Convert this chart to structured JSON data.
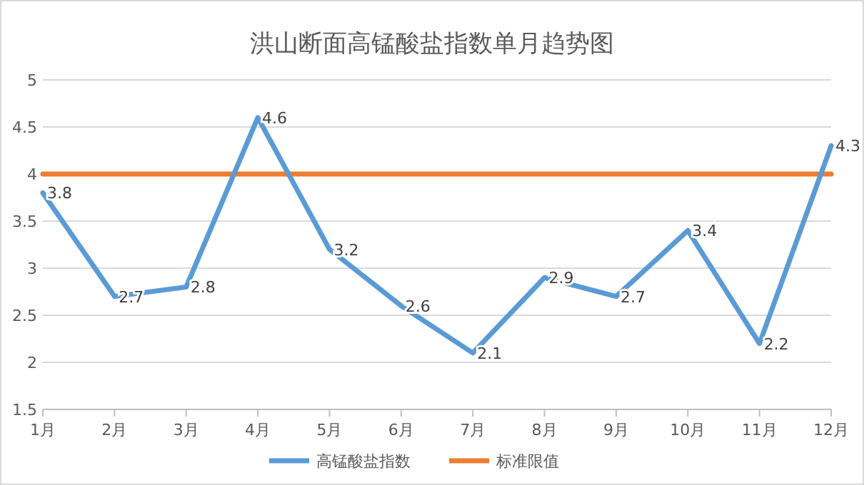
{
  "chart_data": {
    "type": "line",
    "title": "洪山断面高锰酸盐指数单月趋势图",
    "categories": [
      "1月",
      "2月",
      "3月",
      "4月",
      "5月",
      "6月",
      "7月",
      "8月",
      "9月",
      "10月",
      "11月",
      "12月"
    ],
    "series": [
      {
        "name": "高锰酸盐指数",
        "color": "#5b9bd5",
        "values": [
          3.8,
          2.7,
          2.8,
          4.6,
          3.2,
          2.6,
          2.1,
          2.9,
          2.7,
          3.4,
          2.2,
          4.3
        ],
        "value_labels": [
          "3.8",
          "2.7",
          "2.8",
          "4.6",
          "3.2",
          "2.6",
          "2.1",
          "2.9",
          "2.7",
          "3.4",
          "2.2",
          "4.3"
        ]
      },
      {
        "name": "标准限值",
        "color": "#ed7d31",
        "values": [
          4,
          4,
          4,
          4,
          4,
          4,
          4,
          4,
          4,
          4,
          4,
          4
        ]
      }
    ],
    "ylim": [
      1.5,
      5
    ],
    "yticks": [
      1.5,
      2,
      2.5,
      3,
      3.5,
      4,
      4.5,
      5
    ],
    "grid": "y",
    "legend": "bottom",
    "marker": "none",
    "line_style": "solid"
  }
}
